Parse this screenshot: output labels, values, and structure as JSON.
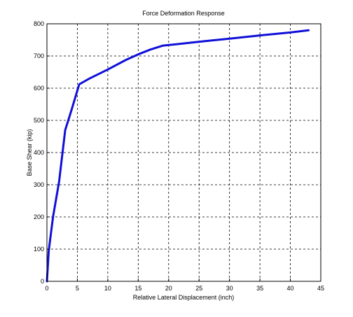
{
  "chart_data": {
    "type": "line",
    "title": "Force Deformation Response",
    "xlabel": "Relative Lateral Displacement (inch)",
    "ylabel": "Base Shear (kip)",
    "xlim": [
      0,
      45
    ],
    "ylim": [
      0,
      800
    ],
    "xticks": [
      0,
      5,
      10,
      15,
      20,
      25,
      30,
      35,
      40,
      45
    ],
    "yticks": [
      0,
      100,
      200,
      300,
      400,
      500,
      600,
      700,
      800
    ],
    "grid": "dashed",
    "series": [
      {
        "color": "#1010d8",
        "x": [
          0,
          0.3,
          1,
          2,
          3,
          4,
          5.3,
          7,
          10,
          13,
          15,
          17,
          19,
          22,
          26,
          30,
          35,
          40,
          43
        ],
        "y": [
          0,
          95,
          200,
          310,
          470,
          530,
          612,
          630,
          658,
          688,
          705,
          720,
          732,
          738,
          746,
          754,
          764,
          773,
          780
        ]
      }
    ]
  }
}
